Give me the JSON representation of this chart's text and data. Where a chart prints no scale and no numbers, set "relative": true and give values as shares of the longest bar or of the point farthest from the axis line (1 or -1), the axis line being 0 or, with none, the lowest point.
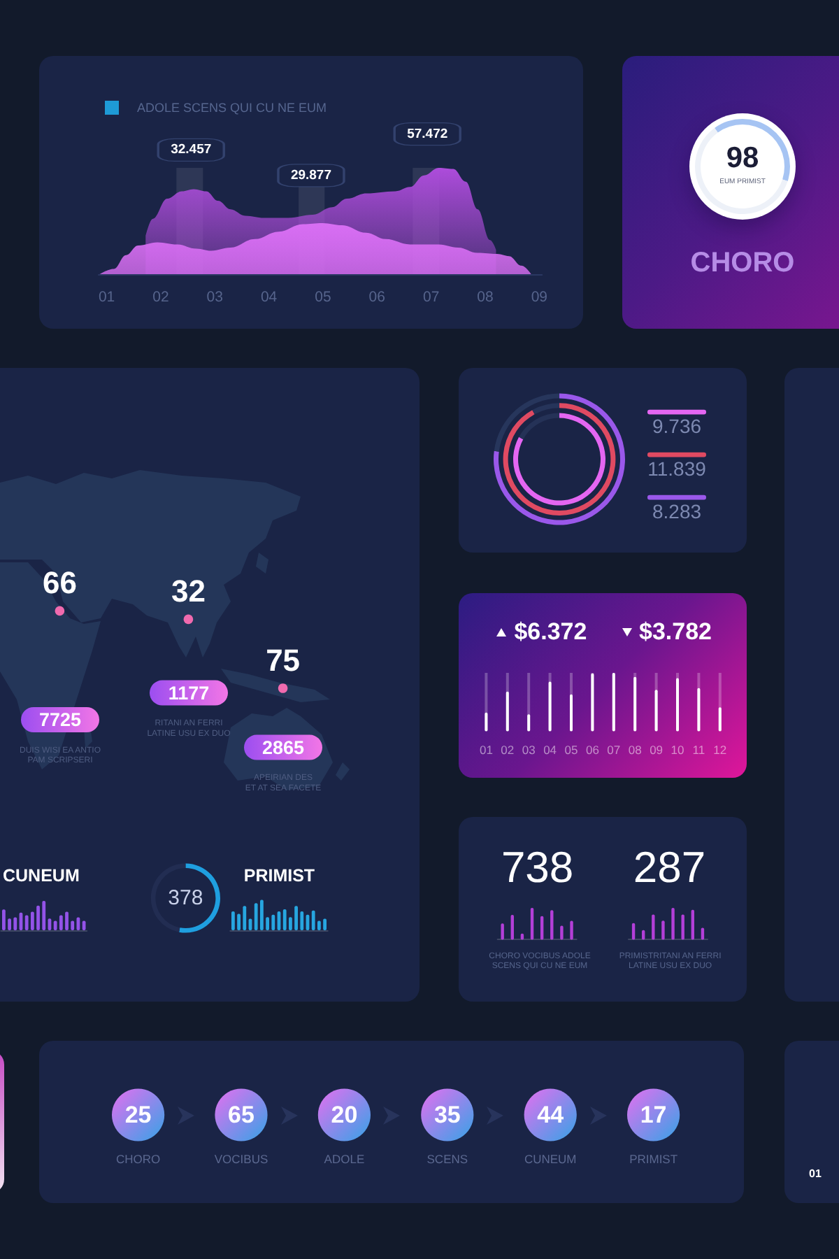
{
  "chart_data": [
    {
      "type": "area",
      "title": "ADOLE SCENS QUI CU NE EUM",
      "relative": true,
      "xlim": [
        0.85,
        9.05
      ],
      "xticks": [
        {
          "value": 1,
          "label": "01"
        },
        {
          "value": 2,
          "label": "02"
        },
        {
          "value": 3,
          "label": "03"
        },
        {
          "value": 4,
          "label": "04"
        },
        {
          "value": 5,
          "label": "05"
        },
        {
          "value": 6,
          "label": "06"
        },
        {
          "value": 7,
          "label": "07"
        },
        {
          "value": 8,
          "label": "08"
        },
        {
          "value": 9,
          "label": "09"
        }
      ],
      "series": [
        {
          "color": "#ad4cdb",
          "x": [
            1.72,
            1.85,
            2.12,
            2.39,
            2.61,
            2.84,
            3.06,
            3.29,
            3.56,
            3.91,
            4.36,
            4.81,
            5.17,
            5.44,
            5.8,
            6.34,
            6.61,
            6.87,
            7.14,
            7.41,
            7.64,
            7.86,
            8.09,
            8.2
          ],
          "values": [
            0.36,
            0.52,
            0.71,
            0.78,
            0.8,
            0.78,
            0.69,
            0.61,
            0.55,
            0.53,
            0.53,
            0.56,
            0.63,
            0.71,
            0.76,
            0.78,
            0.82,
            0.93,
            1,
            0.99,
            0.87,
            0.61,
            0.32,
            0.23
          ]
        },
        {
          "color": "#d86ef3",
          "x": [
            0.87,
            1.13,
            1.36,
            1.58,
            1.94,
            2.3,
            2.66,
            2.93,
            3.29,
            3.74,
            4.18,
            4.63,
            4.99,
            5.35,
            5.8,
            6.16,
            6.61,
            7.14,
            7.5,
            7.86,
            8.22,
            8.44,
            8.67,
            8.85
          ],
          "values": [
            0,
            0.05,
            0.18,
            0.27,
            0.3,
            0.28,
            0.24,
            0.22,
            0.25,
            0.33,
            0.4,
            0.47,
            0.48,
            0.46,
            0.39,
            0.33,
            0.28,
            0.28,
            0.25,
            0.2,
            0.19,
            0.17,
            0.08,
            0
          ]
        }
      ],
      "annotations": [
        {
          "text": "32.457",
          "x": 2.56,
          "y": 0.8
        },
        {
          "text": "29.877",
          "x": 4.78,
          "y": 0.56
        },
        {
          "text": "57.472",
          "x": 6.93,
          "y": 0.95
        }
      ],
      "bands": [
        {
          "axis": "x",
          "from": 2.29,
          "to": 2.78
        },
        {
          "axis": "x",
          "from": 4.55,
          "to": 5.03
        },
        {
          "axis": "x",
          "from": 6.66,
          "to": 7.15
        }
      ]
    },
    {
      "type": "donut",
      "title": "CHORO",
      "categories": [
        null,
        null
      ],
      "values": [
        40,
        60
      ],
      "colors": [
        "#a6c4f3",
        "#edf1f8"
      ],
      "annotations": [
        "98",
        "EUM PRIMIST"
      ]
    },
    {
      "type": "other",
      "data_labels": true,
      "categories": [
        "DUIS WISI EA ANTIO\nPAM SCRIPSERI",
        "RITANI AN FERRI\nLATINE USU EX DUO",
        "APEIRIAN DES\nET AT SEA FACETE"
      ],
      "series": [
        {
          "values": [
            66,
            32,
            75
          ]
        },
        {
          "values": [
            7725,
            1177,
            2865
          ]
        }
      ]
    },
    {
      "type": "bar",
      "title": "CUNEUM",
      "relative": true,
      "categories": [
        null,
        null,
        null,
        null,
        null,
        null,
        null,
        null,
        null,
        null,
        null,
        null,
        null,
        null,
        null
      ],
      "values": [
        0.71,
        0.4,
        0.44,
        0.6,
        0.51,
        0.63,
        0.84,
        1,
        0.4,
        0.32,
        0.51,
        0.63,
        0.32,
        0.44,
        0.32
      ],
      "color": "#9353e8"
    },
    {
      "type": "donut",
      "categories": [
        null,
        null
      ],
      "values": [
        53,
        47
      ],
      "colors": [
        "#1f9fe0",
        "#222d52"
      ],
      "annotations": [
        "378"
      ]
    },
    {
      "type": "bar",
      "title": "PRIMIST",
      "relative": true,
      "categories": [
        null,
        null,
        null,
        null,
        null,
        null,
        null,
        null,
        null,
        null,
        null,
        null,
        null,
        null,
        null,
        null,
        null
      ],
      "values": [
        0.62,
        0.54,
        0.8,
        0.38,
        0.89,
        1,
        0.43,
        0.51,
        0.62,
        0.69,
        0.43,
        0.8,
        0.62,
        0.51,
        0.65,
        0.31,
        0.38
      ],
      "color": "#27a6e0"
    },
    {
      "type": "donut",
      "legend": "right",
      "categories": [
        null,
        null
      ],
      "series": [
        {
          "name": "9.736",
          "colors": [
            "#e466f2",
            "#253257"
          ],
          "values": [
            83,
            17
          ]
        },
        {
          "name": "11.839",
          "colors": [
            "#e04a62",
            "#26345a"
          ],
          "values": [
            92,
            8
          ]
        },
        {
          "name": "8.283",
          "colors": [
            "#9a58ea",
            "#27365c"
          ],
          "values": [
            77,
            23
          ]
        }
      ]
    },
    {
      "type": "bar",
      "relative": true,
      "categories": [
        "01",
        "02",
        "03",
        "04",
        "05",
        "06",
        "07",
        "08",
        "09",
        "10",
        "11",
        "12"
      ],
      "values": [
        0.32,
        0.68,
        0.29,
        0.85,
        0.63,
        0.99,
        1,
        0.93,
        0.71,
        0.91,
        0.74,
        0.41
      ],
      "color": "#ffffff",
      "annotations": [
        "$6.372",
        "$3.782"
      ]
    },
    {
      "type": "bar",
      "title": "738",
      "relative": true,
      "categories": [
        null,
        null,
        null,
        null,
        null,
        null,
        null,
        null
      ],
      "values": [
        0.51,
        0.78,
        0.19,
        1,
        0.74,
        0.93,
        0.44,
        0.59
      ],
      "color": "#b33fd8",
      "annotations": [
        "CHORO VOCIBUS ADOLE\nSCENS QUI CU NE EUM"
      ]
    },
    {
      "type": "bar",
      "title": "287",
      "relative": true,
      "categories": [
        null,
        null,
        null,
        null,
        null,
        null,
        null,
        null
      ],
      "values": [
        0.52,
        0.3,
        0.79,
        0.6,
        1,
        0.79,
        0.94,
        0.37
      ],
      "color": "#b33fd8",
      "annotations": [
        "PRIMISTRITANI AN FERRI\nLATINE USU EX DUO"
      ]
    },
    {
      "type": "other",
      "data_labels": true,
      "categories": [
        "CHORO",
        "VOCIBUS",
        "ADOLE",
        "SCENS",
        "CUNEUM",
        "PRIMIST"
      ],
      "values": [
        25,
        65,
        20,
        35,
        44,
        17
      ],
      "color": "#e56ff0"
    },
    {
      "type": "other",
      "annotations": [
        "01"
      ]
    }
  ]
}
